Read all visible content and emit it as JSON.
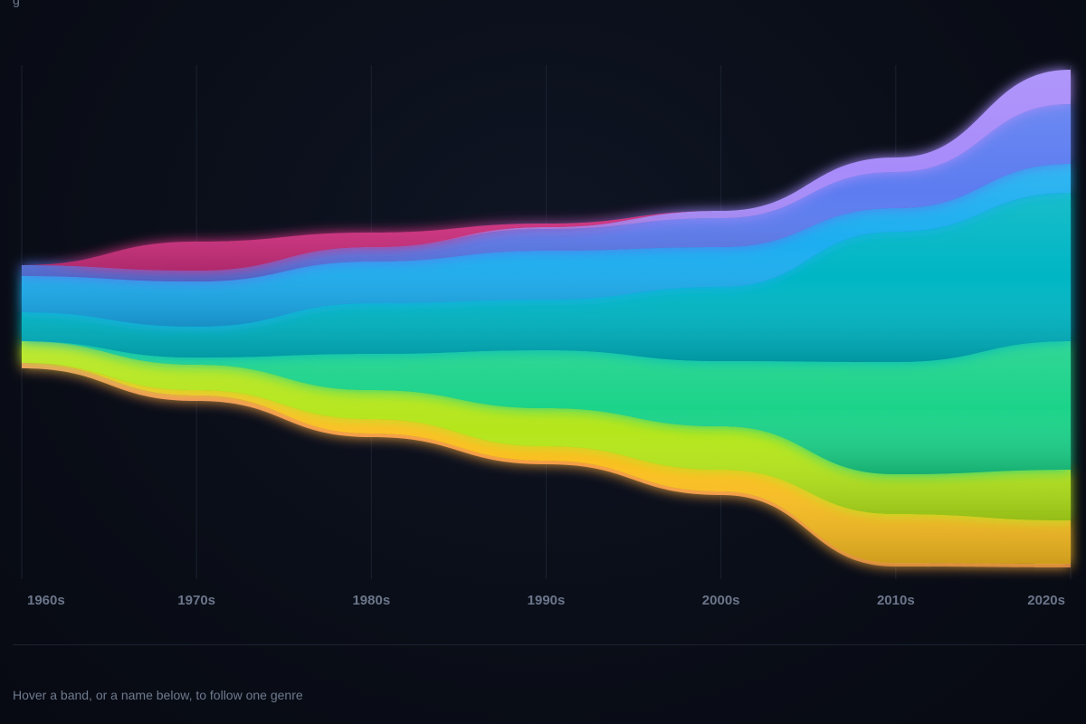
{
  "header": {
    "clipped_title": "g"
  },
  "hint_text": "Hover a band, or a name below, to follow one genre",
  "chart_data": {
    "type": "area",
    "layout": "streamgraph",
    "title": "",
    "xlabel": "",
    "ylabel": "",
    "categories": [
      "1960s",
      "1970s",
      "1980s",
      "1990s",
      "2000s",
      "2010s",
      "2020s"
    ],
    "grid": true,
    "legend": "none",
    "series": [
      {
        "color": "#f08a5d",
        "values": [
          3,
          3,
          2,
          2,
          2,
          2,
          2
        ]
      },
      {
        "color": "#fbbf24",
        "values": [
          0,
          3,
          8,
          8,
          12,
          27,
          24
        ]
      },
      {
        "color": "#b5e61d",
        "values": [
          12,
          14,
          16,
          21,
          24,
          22,
          28
        ]
      },
      {
        "color": "#1ed38a",
        "values": [
          0,
          4,
          20,
          32,
          36,
          62,
          71
        ]
      },
      {
        "color": "#06b6c4",
        "values": [
          16,
          17,
          28,
          28,
          41,
          72,
          82
        ]
      },
      {
        "color": "#1eaef0",
        "values": [
          20,
          25,
          23,
          27,
          22,
          13,
          16
        ]
      },
      {
        "color": "#5b7cf0",
        "values": [
          6,
          6,
          8,
          12,
          16,
          20,
          33
        ]
      },
      {
        "color": "#a78bfa",
        "values": [
          0,
          0,
          0,
          1,
          4,
          8,
          19
        ]
      },
      {
        "color": "#d63384",
        "values": [
          0,
          16,
          8,
          2,
          0,
          0,
          0
        ]
      }
    ]
  }
}
